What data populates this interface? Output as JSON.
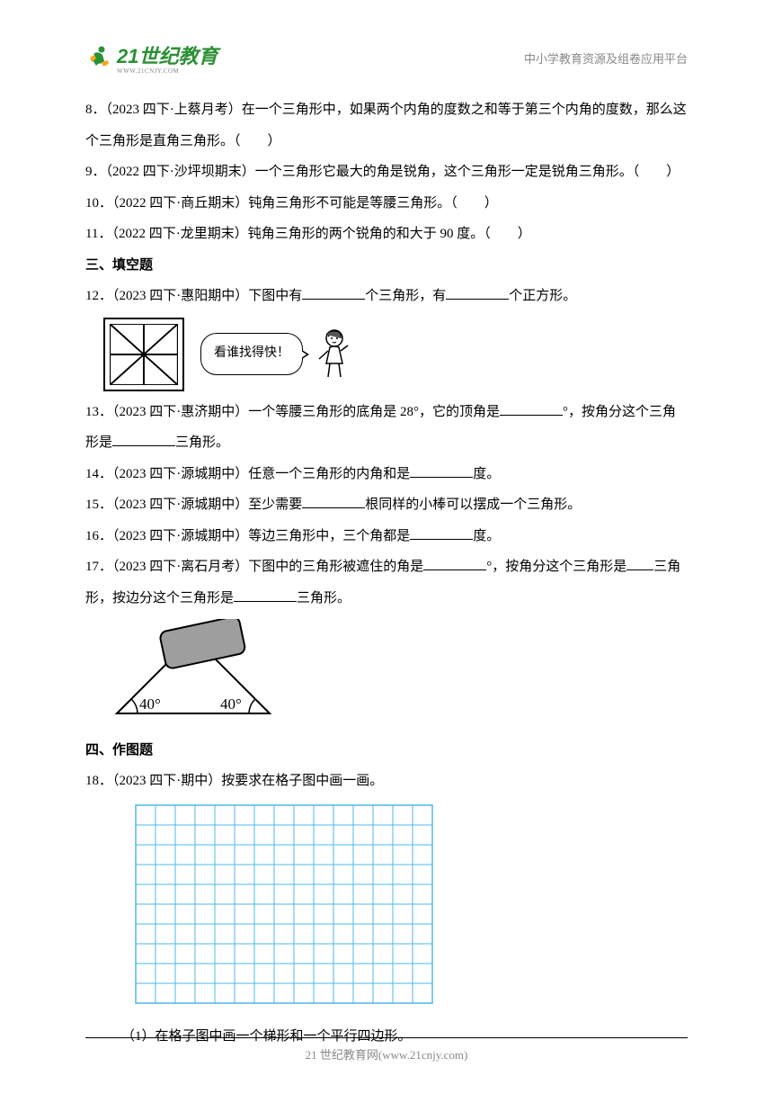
{
  "header": {
    "logo_text": "21世纪教育",
    "logo_url": "WWW.21CNJY.COM",
    "right_text": "中小学教育资源及组卷应用平台"
  },
  "questions": {
    "q8": "8．（2023 四下·上蔡月考）在一个三角形中，如果两个内角的度数之和等于第三个内角的度数，那么这个三角形是直角三角形。（　　）",
    "q9": "9．（2022 四下·沙坪坝期末）一个三角形它最大的角是锐角，这个三角形一定是锐角三角形。（　　）",
    "q10": "10．（2022 四下·商丘期末）钝角三角形不可能是等腰三角形。（　　）",
    "q11": "11．（2022 四下·龙里期末）钝角三角形的两个锐角的和大于 90 度。（　　）",
    "section3": "三、填空题",
    "q12a": "12．（2023 四下·惠阳期中）下图中有",
    "q12b": "个三角形，有",
    "q12c": "个正方形。",
    "speech": "看谁找得快！",
    "q13a": "13．（2023 四下·惠济期中）一个等腰三角形的底角是 28°，它的顶角是",
    "q13b": "°，按角分这个三角形是",
    "q13c": "三角形。",
    "q14a": "14．（2023 四下·源城期中）任意一个三角形的内角和是",
    "q14b": "度。",
    "q15a": "15．（2023 四下·源城期中）至少需要",
    "q15b": "根同样的小棒可以摆成一个三角形。",
    "q16a": "16．（2023 四下·源城期中）等边三角形中，三个角都是",
    "q16b": "度。",
    "q17a": "17．（2023 四下·离石月考）下图中的三角形被遮住的角是",
    "q17b": "°，按角分这个三角形是",
    "q17c": "三角形，按边分这个三角形是",
    "q17d": "三角形。",
    "section4": "四、作图题",
    "q18a": "18．（2023 四下·期中）按要求在格子图中画一画。",
    "q18b": "（1）在格子图中画一个梯形和一个平行四边形。"
  },
  "fig17": {
    "angle1": "40°",
    "angle2": "40°"
  },
  "grid": {
    "cols": 15,
    "rows": 10,
    "cell_size": 22,
    "line_color": "#4db8e8",
    "border_color": "#4db8e8"
  },
  "footer": {
    "text": "21 世纪教育网(www.21cnjy.com)"
  },
  "colors": {
    "logo_green": "#2a9034",
    "logo_orange": "#f5a623",
    "grey": "#888888",
    "black": "#000000",
    "grid_blue": "#4db8e8"
  }
}
